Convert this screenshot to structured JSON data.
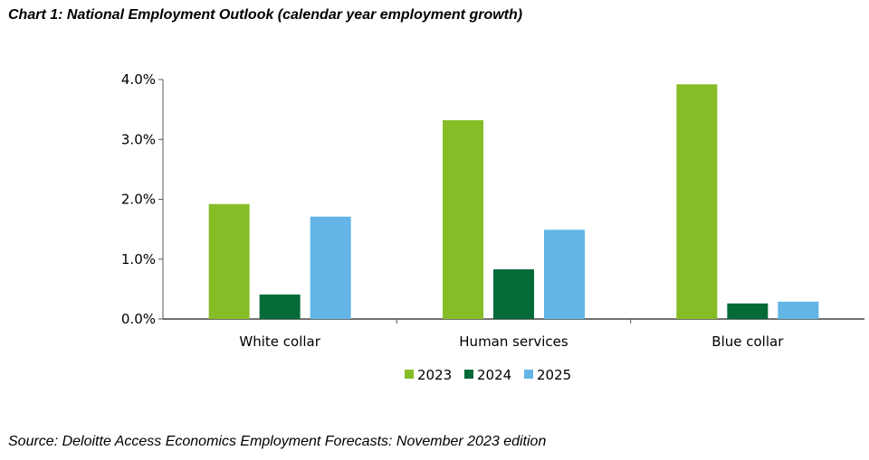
{
  "chart_data": {
    "type": "bar",
    "title": "Chart 1: National Employment Outlook (calendar year employment growth)",
    "source": "Source: Deloitte Access Economics Employment Forecasts: November 2023 edition",
    "categories": [
      "White collar",
      "Human services",
      "Blue collar"
    ],
    "series": [
      {
        "name": "2023",
        "color": "#86BC25",
        "values": [
          1.92,
          3.32,
          3.92
        ]
      },
      {
        "name": "2024",
        "color": "#046A38",
        "values": [
          0.41,
          0.83,
          0.26
        ]
      },
      {
        "name": "2025",
        "color": "#62B5E5",
        "values": [
          1.71,
          1.49,
          0.29
        ]
      }
    ],
    "ylim": [
      0,
      4
    ],
    "yticks": [
      "0.0%",
      "1.0%",
      "2.0%",
      "3.0%",
      "4.0%"
    ],
    "xlabel": "",
    "ylabel": "",
    "grid": false,
    "legend": "bottom"
  }
}
